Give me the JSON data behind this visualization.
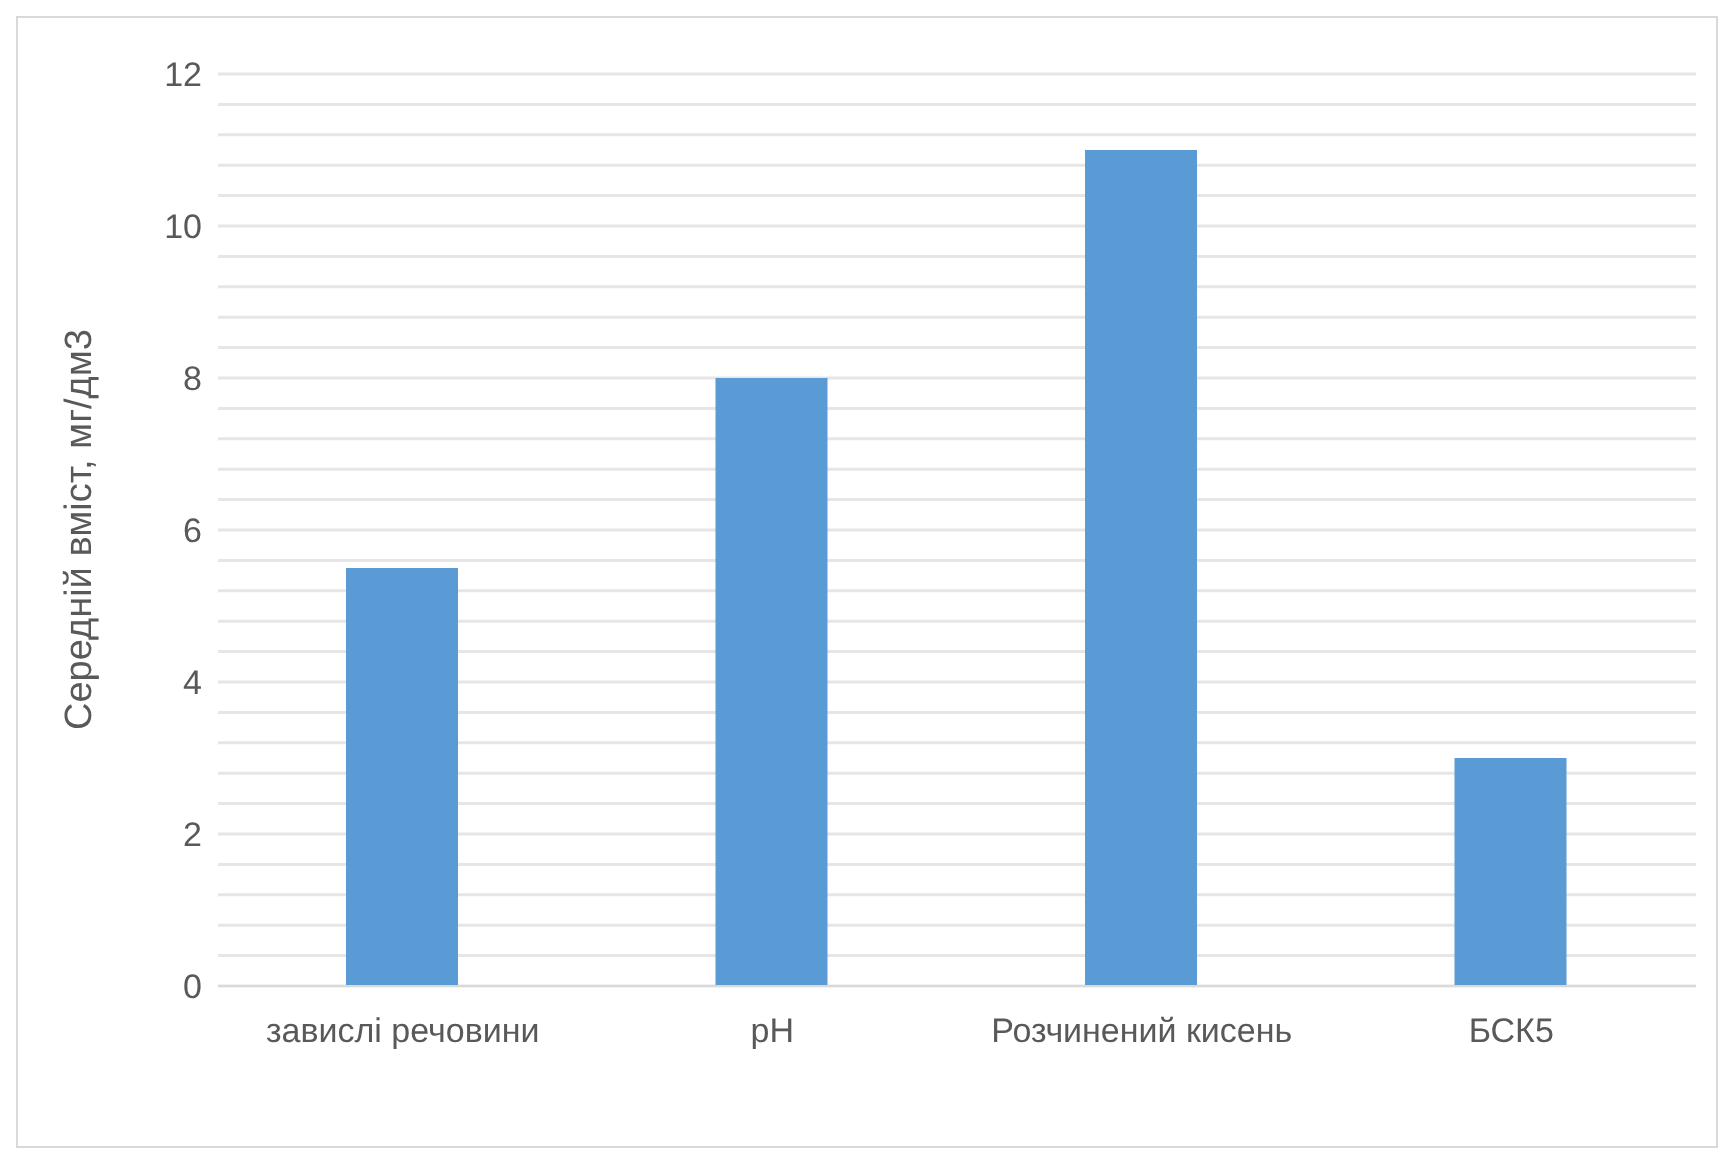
{
  "chart_data": {
    "type": "bar",
    "ylabel": "Середній вміст, мг/дм3",
    "categories": [
      "завислі речовини",
      "pH",
      "Розчинений кисень",
      "БСК5"
    ],
    "values": [
      5.5,
      8,
      11,
      3
    ],
    "color": "#5b9bd5",
    "ylim": [
      0,
      12
    ],
    "yticks": [
      0,
      {
        "value": 0.4,
        "label": null
      },
      {
        "value": 0.8,
        "label": null
      },
      {
        "value": 1.2,
        "label": null
      },
      {
        "value": 1.6,
        "label": null
      },
      2,
      {
        "value": 2.4,
        "label": null
      },
      {
        "value": 2.8,
        "label": null
      },
      {
        "value": 3.2,
        "label": null
      },
      {
        "value": 3.6,
        "label": null
      },
      4,
      {
        "value": 4.4,
        "label": null
      },
      {
        "value": 4.8,
        "label": null
      },
      {
        "value": 5.2,
        "label": null
      },
      {
        "value": 5.6,
        "label": null
      },
      6,
      {
        "value": 6.4,
        "label": null
      },
      {
        "value": 6.8,
        "label": null
      },
      {
        "value": 7.2,
        "label": null
      },
      {
        "value": 7.6,
        "label": null
      },
      8,
      {
        "value": 8.4,
        "label": null
      },
      {
        "value": 8.8,
        "label": null
      },
      {
        "value": 9.2,
        "label": null
      },
      {
        "value": 9.6,
        "label": null
      },
      10,
      {
        "value": 10.4,
        "label": null
      },
      {
        "value": 10.8,
        "label": null
      },
      {
        "value": 11.2,
        "label": null
      },
      {
        "value": 11.6,
        "label": null
      },
      12
    ],
    "grid": "y"
  }
}
